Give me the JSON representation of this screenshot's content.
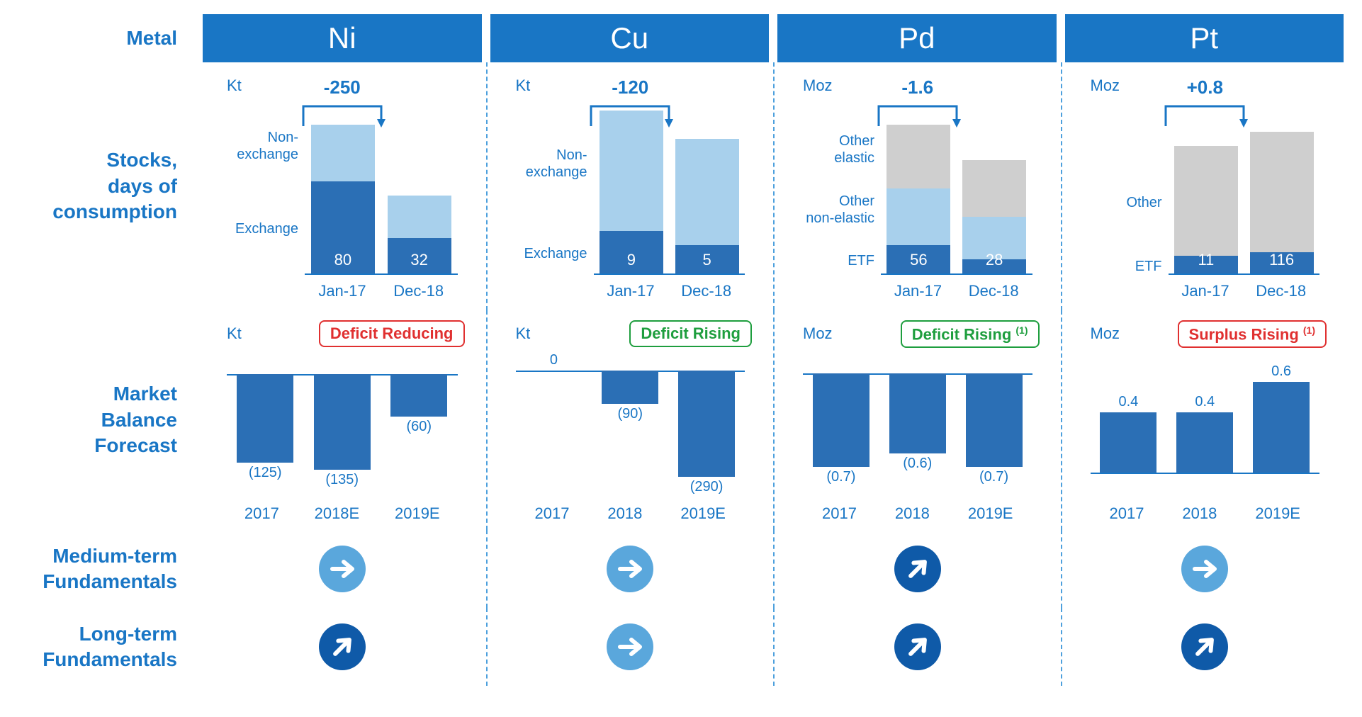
{
  "row_labels": {
    "metal": "Metal",
    "stocks": "Stocks,\ndays of\nconsumption",
    "balance": "Market\nBalance\nForecast",
    "medium": "Medium-term\nFundamentals",
    "long": "Long-term\nFundamentals"
  },
  "colors": {
    "brand_blue": "#1976c5",
    "bar_blue": "#2b6fb5",
    "light_blue": "#a8d0ec",
    "grey": "#cfcfcf",
    "icon_light": "#5aa7dc",
    "icon_dark": "#0f5aa8",
    "badge_red": "#e03030",
    "badge_green": "#1e9e3e"
  },
  "metals": [
    {
      "symbol": "Ni",
      "stocks": {
        "unit": "Kt",
        "delta": "-250",
        "x": [
          "Jan-17",
          "Dec-18"
        ],
        "segments": [
          {
            "name": "Non-exchange",
            "label": "Non-\nexchange",
            "color": "#a8d0ec"
          },
          {
            "name": "Exchange",
            "label": "Exchange",
            "color": "#2b6fb5"
          }
        ],
        "bars": [
          {
            "heights": [
              80,
              130
            ],
            "bottom_label": "80"
          },
          {
            "heights": [
              60,
              50
            ],
            "bottom_label": "32"
          }
        ],
        "ymax": 230
      },
      "balance": {
        "unit": "Kt",
        "badge": {
          "text": "Deficit Reducing",
          "color": "#e03030"
        },
        "years": [
          "2017",
          "2018E",
          "2019E"
        ],
        "values": [
          -125,
          -135,
          -60
        ],
        "labels": [
          "(125)",
          "(135)",
          "(60)"
        ],
        "ymin": -150,
        "ymax": 10
      },
      "medium": {
        "dir": "right",
        "shade": "light"
      },
      "long": {
        "dir": "up-right",
        "shade": "dark"
      }
    },
    {
      "symbol": "Cu",
      "stocks": {
        "unit": "Kt",
        "delta": "-120",
        "x": [
          "Jan-17",
          "Dec-18"
        ],
        "segments": [
          {
            "name": "Non-exchange",
            "label": "Non-\nexchange",
            "color": "#a8d0ec"
          },
          {
            "name": "Exchange",
            "label": "Exchange",
            "color": "#2b6fb5"
          }
        ],
        "bars": [
          {
            "heights": [
              170,
              60
            ],
            "bottom_label": "9"
          },
          {
            "heights": [
              150,
              40
            ],
            "bottom_label": "5"
          }
        ],
        "ymax": 230
      },
      "balance": {
        "unit": "Kt",
        "badge": {
          "text": "Deficit Rising",
          "color": "#1e9e3e"
        },
        "years": [
          "2017",
          "2018",
          "2019E"
        ],
        "values": [
          0,
          -90,
          -290
        ],
        "labels": [
          "0",
          "(90)",
          "(290)"
        ],
        "ymin": -300,
        "ymax": 10
      },
      "medium": {
        "dir": "right",
        "shade": "light"
      },
      "long": {
        "dir": "right",
        "shade": "light"
      }
    },
    {
      "symbol": "Pd",
      "stocks": {
        "unit": "Moz",
        "delta": "-1.6",
        "x": [
          "Jan-17",
          "Dec-18"
        ],
        "segments": [
          {
            "name": "Other elastic",
            "label": "Other\nelastic",
            "color": "#cfcfcf"
          },
          {
            "name": "Other non-elastic",
            "label": "Other\nnon-elastic",
            "color": "#a8d0ec"
          },
          {
            "name": "ETF",
            "label": "ETF",
            "color": "#2b6fb5"
          }
        ],
        "bars": [
          {
            "heights": [
              90,
              80,
              40
            ],
            "bottom_label": "56"
          },
          {
            "heights": [
              80,
              60,
              20
            ],
            "bottom_label": "28"
          }
        ],
        "ymax": 230
      },
      "balance": {
        "unit": "Moz",
        "badge": {
          "text": "Deficit Rising",
          "sup": "(1)",
          "color": "#1e9e3e"
        },
        "years": [
          "2017",
          "2018",
          "2019E"
        ],
        "values": [
          -0.7,
          -0.6,
          -0.7
        ],
        "labels": [
          "(0.7)",
          "(0.6)",
          "(0.7)"
        ],
        "ymin": -0.8,
        "ymax": 0.05
      },
      "medium": {
        "dir": "up-right",
        "shade": "dark"
      },
      "long": {
        "dir": "up-right",
        "shade": "dark"
      }
    },
    {
      "symbol": "Pt",
      "stocks": {
        "unit": "Moz",
        "delta": "+0.8",
        "x": [
          "Jan-17",
          "Dec-18"
        ],
        "segments": [
          {
            "name": "Other",
            "label": "Other",
            "color": "#cfcfcf"
          },
          {
            "name": "ETF",
            "label": "ETF",
            "color": "#2b6fb5"
          }
        ],
        "bars": [
          {
            "heights": [
              155,
              25
            ],
            "bottom_label": "11"
          },
          {
            "heights": [
              170,
              30
            ],
            "bottom_label": "116"
          }
        ],
        "ymax": 230
      },
      "balance": {
        "unit": "Moz",
        "badge": {
          "text": "Surplus Rising",
          "sup": "(1)",
          "color": "#e03030"
        },
        "years": [
          "2017",
          "2018",
          "2019E"
        ],
        "values": [
          0.4,
          0.4,
          0.6
        ],
        "labels": [
          "0.4",
          "0.4",
          "0.6"
        ],
        "ymin": -0.05,
        "ymax": 0.7
      },
      "medium": {
        "dir": "right",
        "shade": "light"
      },
      "long": {
        "dir": "up-right",
        "shade": "dark"
      }
    }
  ]
}
